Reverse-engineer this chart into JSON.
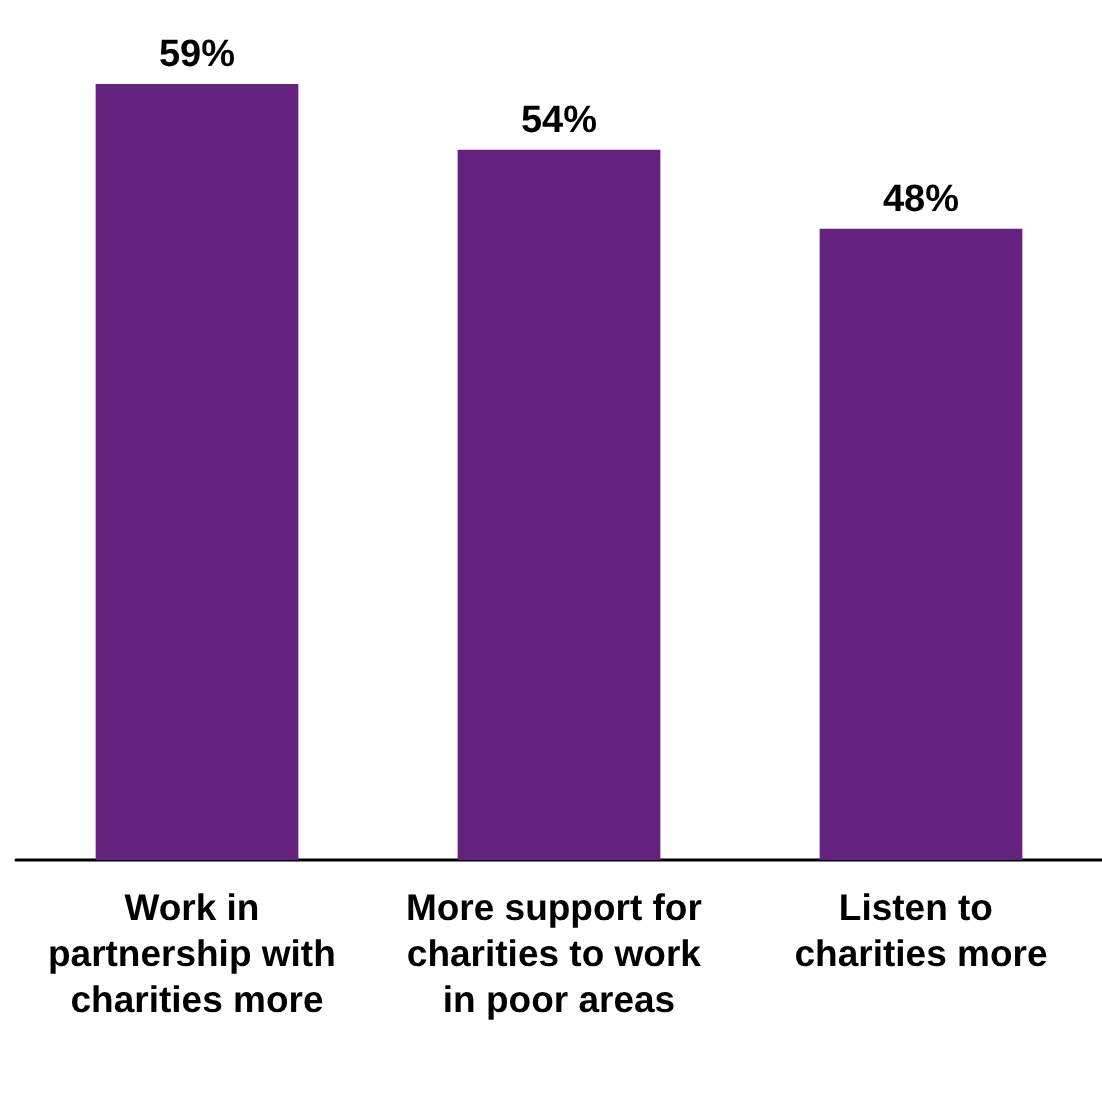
{
  "chart_data": {
    "type": "bar",
    "categories": [
      "Work in partnership with charities more",
      "More support for charities to work in poor areas",
      "Listen to charities more"
    ],
    "values": [
      59,
      54,
      48
    ],
    "value_labels": [
      "59%",
      "54%",
      "48%"
    ],
    "color": "#65237f"
  }
}
